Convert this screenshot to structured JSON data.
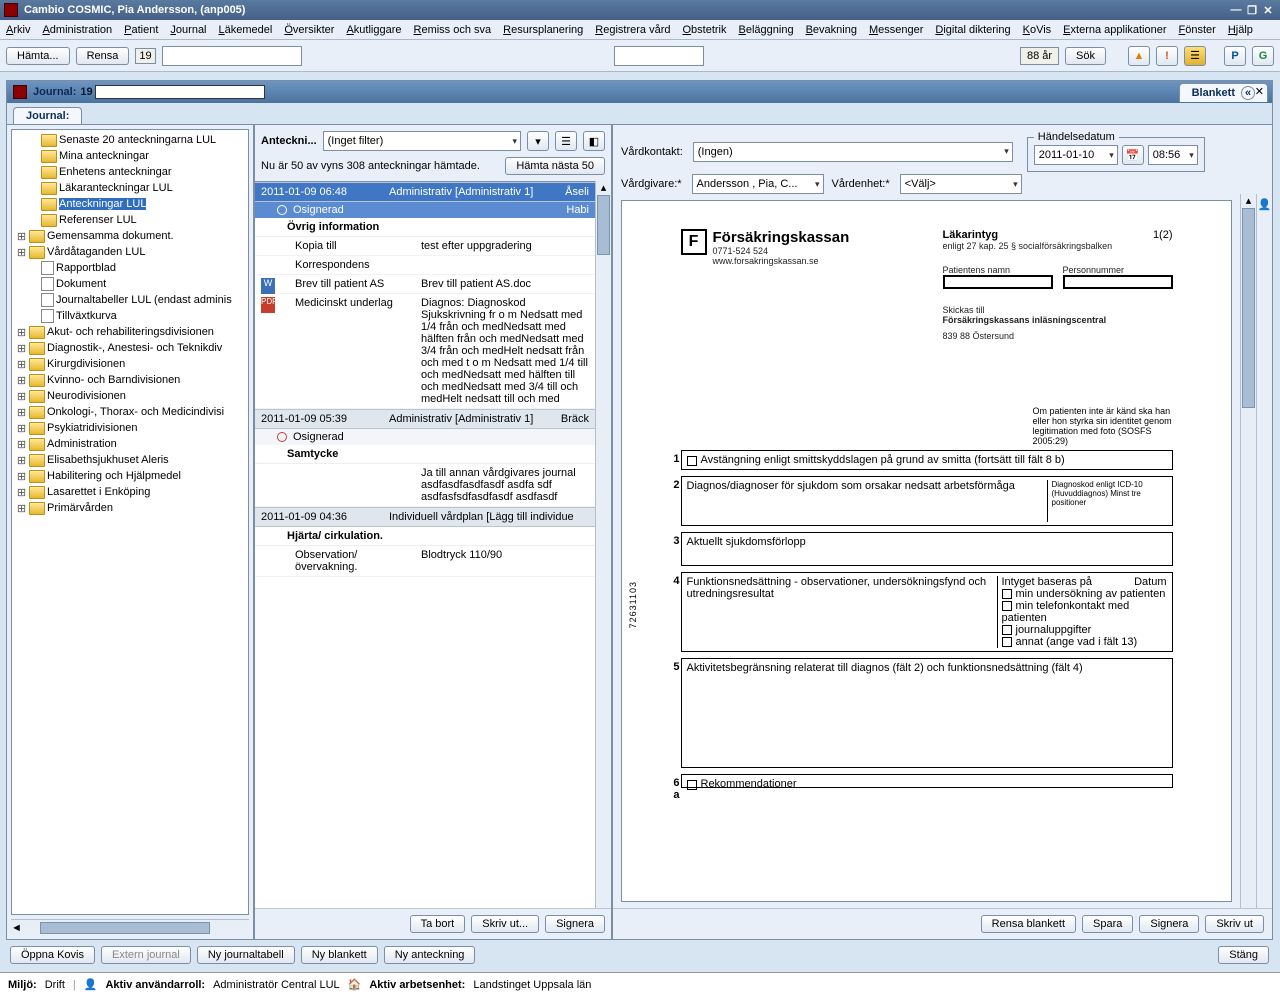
{
  "app": {
    "title": "Cambio COSMIC, Pia Andersson, (anp005)"
  },
  "menu": [
    "Arkiv",
    "Administration",
    "Patient",
    "Journal",
    "Läkemedel",
    "Översikter",
    "Akutliggare",
    "Remiss och sva",
    "Resursplanering",
    "Registrera vård",
    "Obstetrik",
    "Beläggning",
    "Bevakning",
    "Messenger",
    "Digital diktering",
    "KoVis",
    "Externa applikationer",
    "Fönster",
    "Hjälp"
  ],
  "toolbar": {
    "hamta": "Hämta...",
    "rensa": "Rensa",
    "pid": "19",
    "age": "88 år",
    "sok": "Sök",
    "p": "P",
    "g": "G"
  },
  "journal": {
    "label": "Journal:",
    "pid": "19",
    "tab": "Journal:"
  },
  "tree": [
    {
      "exp": "",
      "t": "folder",
      "label": "Senaste 20 anteckningarna LUL",
      "indent": 16
    },
    {
      "exp": "",
      "t": "folder",
      "label": "Mina anteckningar",
      "indent": 16
    },
    {
      "exp": "",
      "t": "folder",
      "label": "Enhetens anteckningar",
      "indent": 16
    },
    {
      "exp": "",
      "t": "folder",
      "label": "Läkaranteckningar LUL",
      "indent": 16
    },
    {
      "exp": "",
      "t": "folder",
      "label": "Anteckningar LUL",
      "indent": 16,
      "sel": true
    },
    {
      "exp": "",
      "t": "folder",
      "label": "Referenser LUL",
      "indent": 16
    },
    {
      "exp": "+",
      "t": "folder",
      "label": "Gemensamma dokument.",
      "indent": 4
    },
    {
      "exp": "+",
      "t": "folder",
      "label": "Vårdåtaganden LUL",
      "indent": 4
    },
    {
      "exp": "",
      "t": "doc",
      "label": "Rapportblad",
      "indent": 16
    },
    {
      "exp": "",
      "t": "doc",
      "label": "Dokument",
      "indent": 16
    },
    {
      "exp": "",
      "t": "doc",
      "label": "Journaltabeller LUL (endast adminis",
      "indent": 16
    },
    {
      "exp": "",
      "t": "doc",
      "label": "Tillväxtkurva",
      "indent": 16
    },
    {
      "exp": "+",
      "t": "folder",
      "label": "Akut- och rehabiliteringsdivisionen",
      "indent": 4
    },
    {
      "exp": "+",
      "t": "folder",
      "label": "Diagnostik-, Anestesi- och Teknikdiv",
      "indent": 4
    },
    {
      "exp": "+",
      "t": "folder",
      "label": "Kirurgdivisionen",
      "indent": 4
    },
    {
      "exp": "+",
      "t": "folder",
      "label": "Kvinno- och Barndivisionen",
      "indent": 4
    },
    {
      "exp": "+",
      "t": "folder",
      "label": "Neurodivisionen",
      "indent": 4
    },
    {
      "exp": "+",
      "t": "folder",
      "label": "Onkologi-, Thorax- och Medicindivisi",
      "indent": 4
    },
    {
      "exp": "+",
      "t": "folder",
      "label": "Psykiatridivisionen",
      "indent": 4
    },
    {
      "exp": "+",
      "t": "folder",
      "label": "Administration",
      "indent": 4
    },
    {
      "exp": "+",
      "t": "folder",
      "label": "Elisabethsjukhuset Aleris",
      "indent": 4
    },
    {
      "exp": "+",
      "t": "folder",
      "label": "Habilitering och Hjälpmedel",
      "indent": 4
    },
    {
      "exp": "+",
      "t": "folder",
      "label": "Lasarettet i Enköping",
      "indent": 4
    },
    {
      "exp": "+",
      "t": "folder",
      "label": "Primärvården",
      "indent": 4
    }
  ],
  "notes": {
    "title": "Anteckni...",
    "filter": "(Inget filter)",
    "status": "Nu är 50 av vyns 308 anteckningar hämtade.",
    "next": "Hämta nästa 50",
    "entries": [
      {
        "date": "2011-01-09  06:48",
        "type": "Administrativ [Administrativ 1]",
        "who": "Åseli",
        "sig": "Osignerad",
        "who2": "Habi",
        "sel": true,
        "rows": [
          {
            "sub": "Övrig information"
          },
          {
            "k": "Kopia till",
            "v": "test efter uppgradering"
          },
          {
            "k": "Korrespondens",
            "v": ""
          },
          {
            "k": "Brev till patient AS",
            "v": "Brev till patient AS.doc",
            "icon": "word"
          },
          {
            "k": "Medicinskt underlag",
            "v": "Diagnos: Diagnoskod Sjukskrivning fr o m Nedsatt med 1/4 från och medNedsatt med hälften från och medNedsatt med 3/4 från och medHelt nedsatt från och med t o m Nedsatt med 1/4 till och medNedsatt med hälften till och medNedsatt med 3/4 till och medHelt nedsatt till och med",
            "icon": "pdf"
          }
        ]
      },
      {
        "date": "2011-01-09  05:39",
        "type": "Administrativ [Administrativ 1]",
        "who": "Bräck",
        "sig": "Osignerad",
        "rows": [
          {
            "sub": "Samtycke",
            "v": "Ja till annan vårdgivares journal asdfasdfasdfasdf asdfa sdf asdfasfsdfasdfasdf asdfasdf"
          }
        ]
      },
      {
        "date": "2011-01-09  04:36",
        "type": "Individuell vårdplan [Lägg till individue",
        "who": "",
        "sig": "",
        "rows": [
          {
            "sub": "Hjärta/ cirkulation."
          },
          {
            "k": "Observation/ övervakning.",
            "v": "Blodtryck 110/90"
          }
        ]
      }
    ],
    "footer": {
      "tabort": "Ta bort",
      "skrivut": "Skriv ut...",
      "signera": "Signera"
    }
  },
  "form": {
    "blankett": "Blankett",
    "vardkontakt_lbl": "Vårdkontakt:",
    "vardkontakt": "(Ingen)",
    "vardgivare_lbl": "Vårdgivare:*",
    "vardgivare": "Andersson , Pia, C...",
    "vardenhet_lbl": "Vårdenhet:*",
    "vardenhet": "<Välj>",
    "handelsedatum_lbl": "Händelsedatum",
    "date": "2011-01-10",
    "time": "08:56",
    "footer": {
      "rensa": "Rensa blankett",
      "spara": "Spara",
      "signera": "Signera",
      "skrivut": "Skriv ut"
    }
  },
  "doc": {
    "org": "Försäkringskassan",
    "phone": "0771-524 524",
    "url": "www.forsakringskassan.se",
    "title": "Läkarintyg",
    "sub": "enligt 27 kap. 25 § socialförsäkringsbalken",
    "page": "1(2)",
    "patient_lbl": "Patientens namn",
    "pnr_lbl": "Personnummer",
    "skickas": "Skickas till",
    "addr1": "Försäkringskassans inläsningscentral",
    "addr2": "839 88 Östersund",
    "note": "Om patienten inte är känd ska han eller hon styrka sin identitet genom legitimation med foto (SOSFS 2005:29)",
    "f1": "Avstängning enligt smittskyddslagen på grund av smitta (fortsätt till fält 8 b)",
    "f2": "Diagnos/diagnoser för sjukdom som orsakar nedsatt arbetsförmåga",
    "f2r": "Diagnoskod enligt ICD-10 (Huvuddiagnos) Minst tre positioner",
    "f3": "Aktuellt sjukdomsförlopp",
    "f4": "Funktionsnedsättning - observationer, undersökningsfynd och utredningsresultat",
    "f4_a": "Intyget baseras på",
    "f4_b": "Datum",
    "f4_1": "min undersökning av patienten",
    "f4_2": "min telefonkontakt med patienten",
    "f4_3": "journaluppgifter",
    "f4_4": "annat (ange vad i fält 13)",
    "f5": "Aktivitetsbegränsning relaterat till diagnos (fält 2) och funktionsnedsättning (fält 4)",
    "f6": "Rekommendationer",
    "sidecode": "72631103"
  },
  "bottom": {
    "oppna": "Öppna Kovis",
    "extern": "Extern journal",
    "nytab": "Ny journaltabell",
    "nyblank": "Ny blankett",
    "nyant": "Ny anteckning",
    "stang": "Stäng"
  },
  "status": {
    "miljo_l": "Miljö:",
    "miljo": "Drift",
    "roll_l": "Aktiv användarroll:",
    "roll": "Administratör Central LUL",
    "enh_l": "Aktiv arbetsenhet:",
    "enh": "Landstinget Uppsala län"
  }
}
